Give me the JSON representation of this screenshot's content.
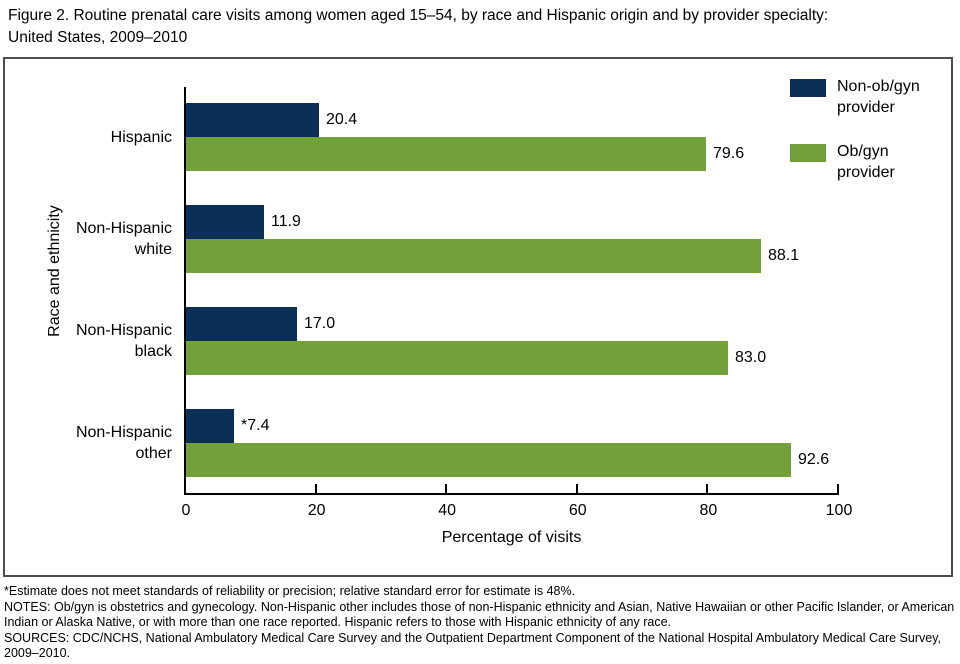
{
  "title": {
    "line1": "Figure 2. Routine prenatal care visits among women aged 15–54, by race and Hispanic origin and by provider specialty:",
    "line2": "United States, 2009–2010"
  },
  "chart_data": {
    "type": "bar",
    "orientation": "horizontal",
    "categories": [
      "Hispanic",
      "Non-Hispanic white",
      "Non-Hispanic black",
      "Non-Hispanic other"
    ],
    "series": [
      {
        "name": "Non-ob/gyn provider",
        "color": "#0c2f58",
        "values": [
          20.4,
          11.9,
          17.0,
          7.4
        ],
        "value_labels": [
          "20.4",
          "11.9",
          "17.0",
          "*7.4"
        ]
      },
      {
        "name": "Ob/gyn provider",
        "color": "#72a13c",
        "values": [
          79.6,
          88.1,
          83.0,
          92.6
        ],
        "value_labels": [
          "79.6",
          "88.1",
          "83.0",
          "92.6"
        ]
      }
    ],
    "xlabel": "Percentage of visits",
    "ylabel": "Race and ethnicity",
    "xlim": [
      0,
      100
    ],
    "xticks": [
      0,
      20,
      40,
      60,
      80,
      100
    ],
    "legend_position": "top-right",
    "grid": false,
    "axis_color": "#000000",
    "panel_border_color": "#4d4d4d"
  },
  "footnotes": {
    "asterisk": "*Estimate does not meet standards of reliability or precision; relative standard error for estimate is 48%.",
    "notes": "NOTES: Ob/gyn is obstetrics and gynecology. Non-Hispanic other includes those of non-Hispanic ethnicity and Asian, Native Hawaiian or other Pacific Islander, or American Indian or Alaska Native, or with more than one race reported. Hispanic refers to those with Hispanic ethnicity of any race.",
    "sources": "SOURCES: CDC/NCHS, National Ambulatory Medical Care Survey and the Outpatient Department Component of the National Hospital Ambulatory Medical Care Survey, 2009–2010."
  }
}
